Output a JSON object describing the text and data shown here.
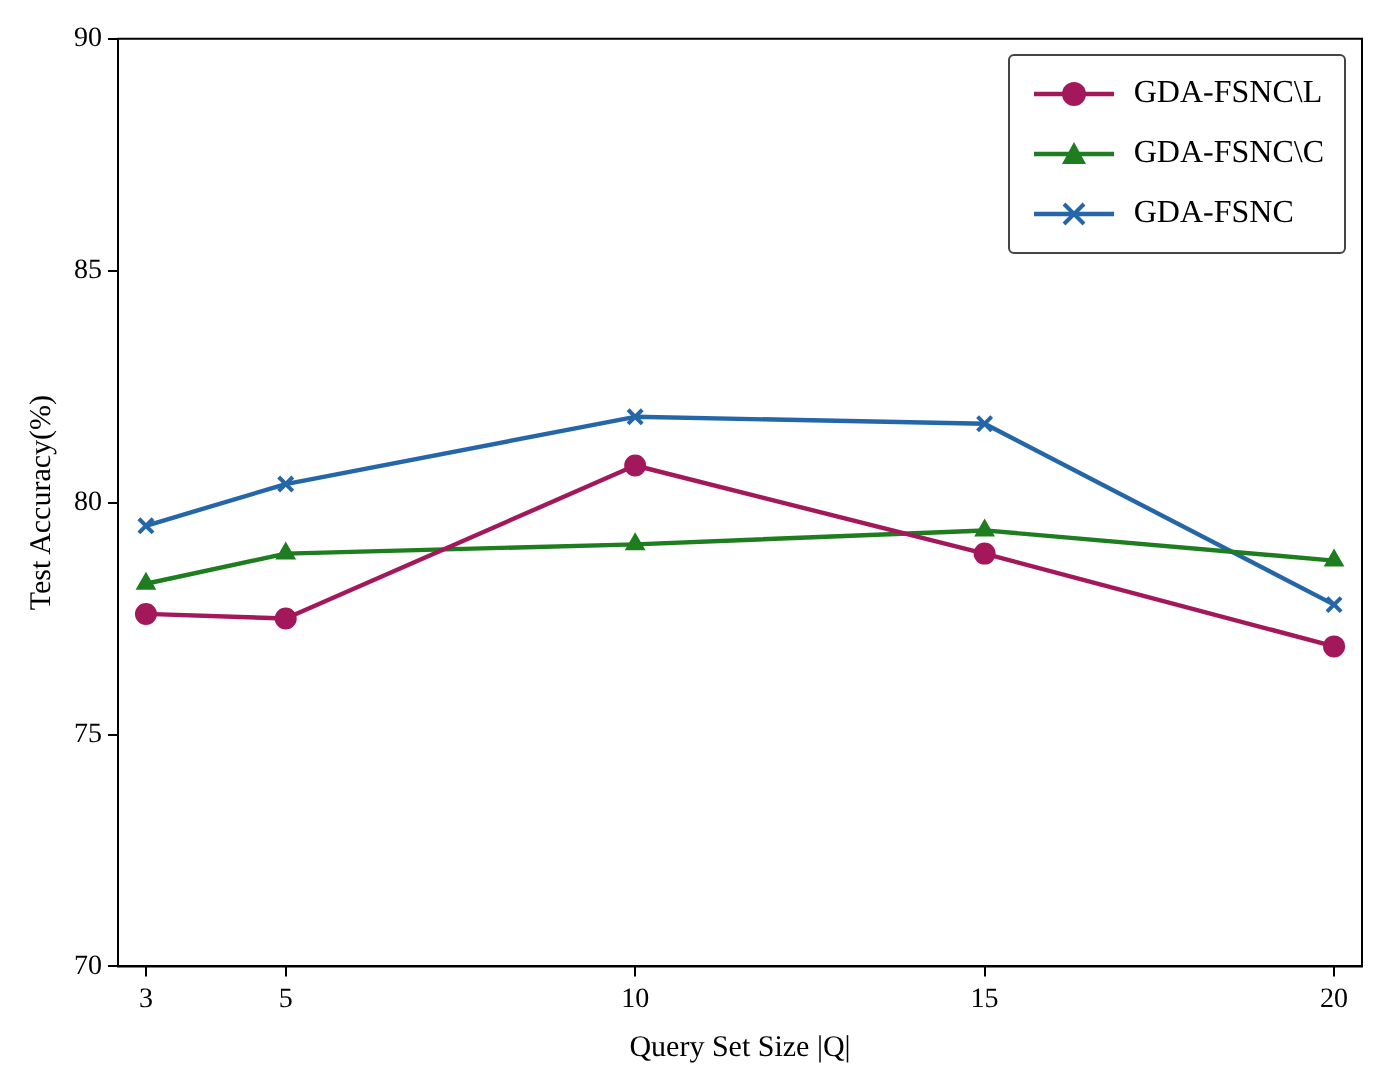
{
  "chart_data": {
    "type": "line",
    "xlabel": "Query Set Size |Q|",
    "ylabel": "Test Accuracy(%)",
    "x": [
      3,
      5,
      10,
      15,
      20
    ],
    "series": [
      {
        "name": "GDA-FSNC\\L",
        "color": "#a3185a",
        "marker": "circle",
        "values": [
          77.6,
          77.5,
          80.8,
          78.9,
          76.9
        ]
      },
      {
        "name": "GDA-FSNC\\C",
        "color": "#1e7d1e",
        "marker": "triangle",
        "values": [
          78.25,
          78.9,
          79.1,
          79.4,
          78.75
        ]
      },
      {
        "name": "GDA-FSNC",
        "color": "#2566a8",
        "marker": "cross",
        "values": [
          79.5,
          80.4,
          81.85,
          81.7,
          77.8
        ]
      }
    ],
    "xlim": [
      2.6,
      20.4
    ],
    "xticks": [
      3,
      5,
      10,
      15,
      20
    ],
    "ylim": [
      70,
      90
    ],
    "yticks": [
      70,
      75,
      80,
      85,
      90
    ],
    "grid": false,
    "legend": "top right",
    "line_style": "solid"
  }
}
